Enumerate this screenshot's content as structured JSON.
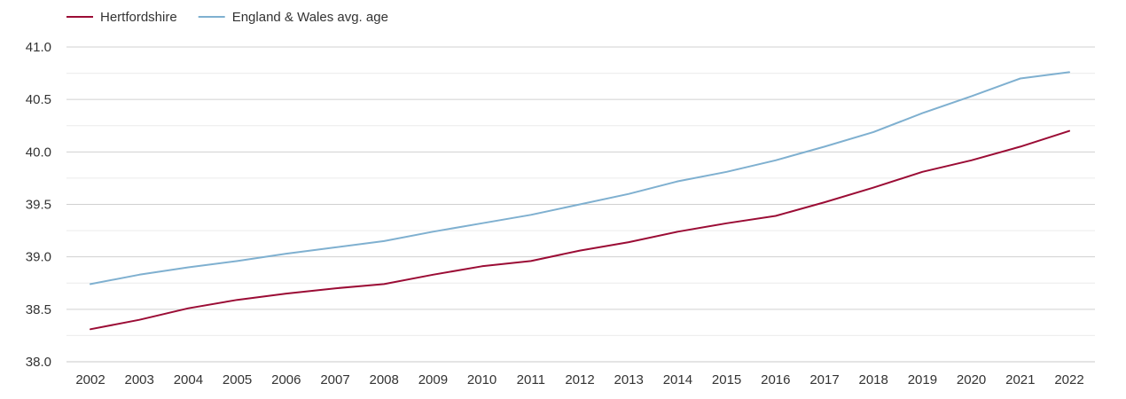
{
  "chart_data": {
    "type": "line",
    "title": "",
    "xlabel": "",
    "ylabel": "",
    "categories": [
      "2002",
      "2003",
      "2004",
      "2005",
      "2006",
      "2007",
      "2008",
      "2009",
      "2010",
      "2011",
      "2012",
      "2013",
      "2014",
      "2015",
      "2016",
      "2017",
      "2018",
      "2019",
      "2020",
      "2021",
      "2022"
    ],
    "ylim": [
      38.0,
      41.0
    ],
    "yticks": [
      "38.0",
      "38.5",
      "39.0",
      "39.5",
      "40.0",
      "40.5",
      "41.0"
    ],
    "grid": true,
    "legend_position": "top-left",
    "series": [
      {
        "name": "Hertfordshire",
        "color": "#9b0c35",
        "values": [
          38.31,
          38.4,
          38.51,
          38.59,
          38.65,
          38.7,
          38.74,
          38.83,
          38.91,
          38.96,
          39.06,
          39.14,
          39.24,
          39.32,
          39.39,
          39.52,
          39.66,
          39.81,
          39.92,
          40.05,
          40.2
        ]
      },
      {
        "name": "England & Wales avg. age",
        "color": "#7fb0d0",
        "values": [
          38.74,
          38.83,
          38.9,
          38.96,
          39.03,
          39.09,
          39.15,
          39.24,
          39.32,
          39.4,
          39.5,
          39.6,
          39.72,
          39.81,
          39.92,
          40.05,
          40.19,
          40.37,
          40.53,
          40.7,
          40.76
        ]
      }
    ]
  }
}
